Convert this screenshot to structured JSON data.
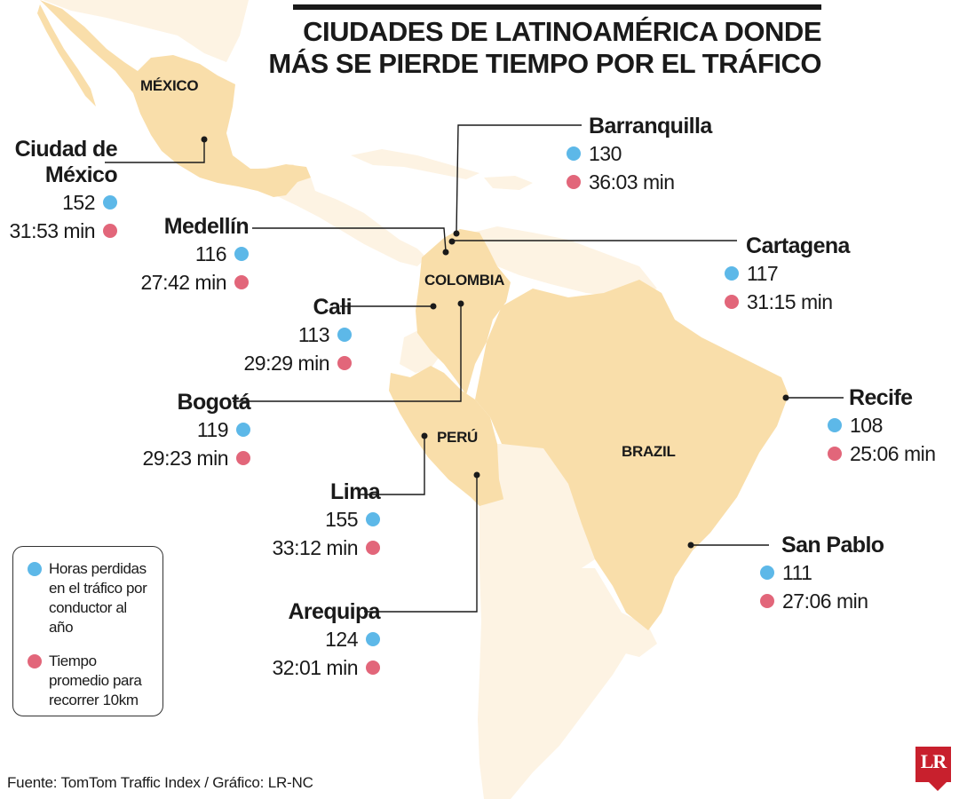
{
  "title": {
    "line1": "CIUDADES DE LATINOAMÉRICA DONDE",
    "line2": "MÁS SE PIERDE TIEMPO POR EL TRÁFICO"
  },
  "countries": {
    "mexico": "MÉXICO",
    "colombia": "COLOMBIA",
    "peru": "PERÚ",
    "brazil": "BRAZIL"
  },
  "cities": {
    "cdmx": {
      "name_line1": "Ciudad de",
      "name_line2": "México",
      "hours": "152",
      "time": "31:53 min"
    },
    "barranquilla": {
      "name": "Barranquilla",
      "hours": "130",
      "time": "36:03 min"
    },
    "medellin": {
      "name": "Medellín",
      "hours": "116",
      "time": "27:42 min"
    },
    "cartagena": {
      "name": "Cartagena",
      "hours": "117",
      "time": "31:15 min"
    },
    "cali": {
      "name": "Cali",
      "hours": "113",
      "time": "29:29 min"
    },
    "bogota": {
      "name": "Bogotá",
      "hours": "119",
      "time": "29:23 min"
    },
    "recife": {
      "name": "Recife",
      "hours": "108",
      "time": "25:06 min"
    },
    "lima": {
      "name": "Lima",
      "hours": "155",
      "time": "33:12 min"
    },
    "sanpablo": {
      "name": "San Pablo",
      "hours": "111",
      "time": "27:06 min"
    },
    "arequipa": {
      "name": "Arequipa",
      "hours": "124",
      "time": "32:01 min"
    }
  },
  "legend": {
    "hours_label": "Horas perdidas en el tráfico por conductor al año",
    "time_label": "Tiempo promedio para recorrer 10km"
  },
  "source": "Fuente: TomTom Traffic Index / Gráfico: LR-NC",
  "logo": "LR",
  "colors": {
    "hours_dot": "#5db8e8",
    "time_dot": "#e2667a",
    "highlight_land": "#f9deaa",
    "other_land": "#fdf3e3",
    "logo": "#c8202d"
  }
}
